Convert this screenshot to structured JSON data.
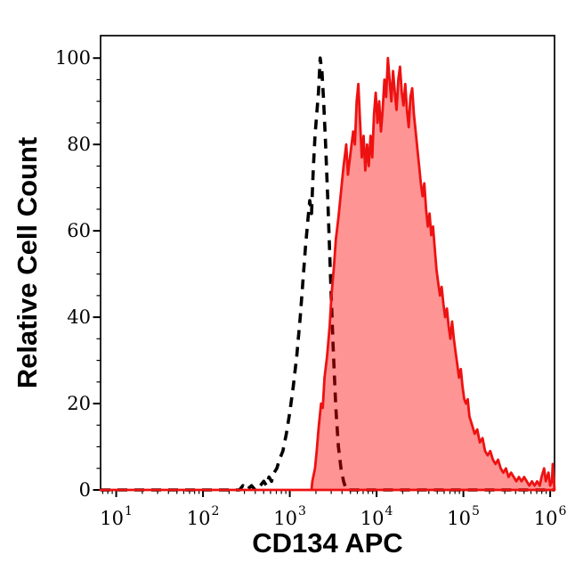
{
  "figure": {
    "background": "#ffffff",
    "frame_color": "#000000"
  },
  "chart_data": {
    "type": "area",
    "subtype": "flow-cytometry-overlay-histogram",
    "title": "",
    "xlabel": "CD134 APC",
    "ylabel": "Relative Cell Count",
    "x_scale": "log10",
    "x_tick_base": "10",
    "x_tick_exponents": [
      1,
      2,
      3,
      4,
      5,
      6
    ],
    "x_range_log10": [
      0.82,
      6.05
    ],
    "y_ticks": [
      0,
      20,
      40,
      60,
      80,
      100
    ],
    "y_minor_step": 5,
    "y_range": [
      0,
      105.2
    ],
    "grid": false,
    "legend": "none",
    "series": [
      {
        "name": "control (dashed outline)",
        "type": "dashed-histogram",
        "line_color": "#000000",
        "fill_color": "none",
        "peak_log10x": 3.35,
        "peak_count": 100,
        "points": [
          [
            0.82,
            0
          ],
          [
            2.42,
            0
          ],
          [
            2.46,
            1
          ],
          [
            2.5,
            0
          ],
          [
            2.56,
            1
          ],
          [
            2.6,
            0
          ],
          [
            2.66,
            1
          ],
          [
            2.7,
            2
          ],
          [
            2.73,
            1
          ],
          [
            2.76,
            3
          ],
          [
            2.79,
            2
          ],
          [
            2.82,
            4
          ],
          [
            2.85,
            5
          ],
          [
            2.88,
            7
          ],
          [
            2.92,
            9
          ],
          [
            2.96,
            13
          ],
          [
            3.0,
            18
          ],
          [
            3.04,
            24
          ],
          [
            3.08,
            31
          ],
          [
            3.12,
            40
          ],
          [
            3.15,
            48
          ],
          [
            3.18,
            56
          ],
          [
            3.21,
            63
          ],
          [
            3.23,
            67
          ],
          [
            3.25,
            64
          ],
          [
            3.27,
            74
          ],
          [
            3.29,
            82
          ],
          [
            3.31,
            87
          ],
          [
            3.33,
            92
          ],
          [
            3.35,
            100
          ],
          [
            3.37,
            97
          ],
          [
            3.39,
            90
          ],
          [
            3.41,
            81
          ],
          [
            3.44,
            66
          ],
          [
            3.47,
            49
          ],
          [
            3.5,
            33
          ],
          [
            3.53,
            19
          ],
          [
            3.56,
            10
          ],
          [
            3.59,
            5
          ],
          [
            3.62,
            2
          ],
          [
            3.65,
            0
          ],
          [
            6.05,
            0
          ]
        ]
      },
      {
        "name": "CD134 APC stained (red filled)",
        "type": "filled-histogram",
        "line_color": "#ee1111",
        "fill_color": "rgba(255,0,0,0.42)",
        "peak_log10x": 4.13,
        "peak_count": 100,
        "points": [
          [
            0.82,
            0
          ],
          [
            3.25,
            0
          ],
          [
            3.26,
            2
          ],
          [
            3.29,
            5
          ],
          [
            3.31,
            9
          ],
          [
            3.33,
            14
          ],
          [
            3.36,
            20
          ],
          [
            3.38,
            19
          ],
          [
            3.4,
            26
          ],
          [
            3.43,
            31
          ],
          [
            3.46,
            38
          ],
          [
            3.48,
            45
          ],
          [
            3.51,
            52
          ],
          [
            3.53,
            58
          ],
          [
            3.56,
            63
          ],
          [
            3.59,
            69
          ],
          [
            3.62,
            75
          ],
          [
            3.65,
            80
          ],
          [
            3.67,
            73
          ],
          [
            3.7,
            78
          ],
          [
            3.73,
            83
          ],
          [
            3.75,
            80
          ],
          [
            3.77,
            90
          ],
          [
            3.79,
            94
          ],
          [
            3.81,
            85
          ],
          [
            3.83,
            77
          ],
          [
            3.85,
            82
          ],
          [
            3.87,
            74
          ],
          [
            3.89,
            80
          ],
          [
            3.91,
            75
          ],
          [
            3.93,
            82
          ],
          [
            3.95,
            77
          ],
          [
            3.97,
            87
          ],
          [
            3.99,
            92
          ],
          [
            4.01,
            85
          ],
          [
            4.03,
            90
          ],
          [
            4.05,
            83
          ],
          [
            4.07,
            88
          ],
          [
            4.09,
            95
          ],
          [
            4.11,
            91
          ],
          [
            4.13,
            100
          ],
          [
            4.15,
            95
          ],
          [
            4.17,
            90
          ],
          [
            4.19,
            97
          ],
          [
            4.21,
            92
          ],
          [
            4.23,
            88
          ],
          [
            4.25,
            95
          ],
          [
            4.27,
            98
          ],
          [
            4.29,
            92
          ],
          [
            4.31,
            89
          ],
          [
            4.33,
            94
          ],
          [
            4.35,
            88
          ],
          [
            4.37,
            84
          ],
          [
            4.39,
            91
          ],
          [
            4.41,
            93
          ],
          [
            4.43,
            87
          ],
          [
            4.45,
            83
          ],
          [
            4.47,
            79
          ],
          [
            4.49,
            75
          ],
          [
            4.51,
            71
          ],
          [
            4.53,
            68
          ],
          [
            4.55,
            71
          ],
          [
            4.57,
            65
          ],
          [
            4.59,
            61
          ],
          [
            4.61,
            64
          ],
          [
            4.63,
            59
          ],
          [
            4.65,
            61
          ],
          [
            4.67,
            56
          ],
          [
            4.69,
            51
          ],
          [
            4.71,
            48
          ],
          [
            4.73,
            45
          ],
          [
            4.75,
            47
          ],
          [
            4.77,
            43
          ],
          [
            4.79,
            40
          ],
          [
            4.81,
            42
          ],
          [
            4.83,
            38
          ],
          [
            4.85,
            35
          ],
          [
            4.87,
            39
          ],
          [
            4.89,
            35
          ],
          [
            4.91,
            32
          ],
          [
            4.93,
            29
          ],
          [
            4.95,
            26
          ],
          [
            4.97,
            28
          ],
          [
            4.99,
            24
          ],
          [
            5.01,
            21
          ],
          [
            5.03,
            20
          ],
          [
            5.05,
            21
          ],
          [
            5.07,
            17
          ],
          [
            5.1,
            15
          ],
          [
            5.13,
            13
          ],
          [
            5.16,
            14
          ],
          [
            5.19,
            11
          ],
          [
            5.22,
            12
          ],
          [
            5.25,
            9
          ],
          [
            5.28,
            8
          ],
          [
            5.31,
            9
          ],
          [
            5.34,
            7
          ],
          [
            5.37,
            6
          ],
          [
            5.4,
            7
          ],
          [
            5.43,
            5
          ],
          [
            5.46,
            4
          ],
          [
            5.49,
            5
          ],
          [
            5.52,
            3
          ],
          [
            5.55,
            4
          ],
          [
            5.58,
            3
          ],
          [
            5.61,
            2
          ],
          [
            5.64,
            3
          ],
          [
            5.67,
            2
          ],
          [
            5.7,
            3
          ],
          [
            5.73,
            2
          ],
          [
            5.76,
            1
          ],
          [
            5.79,
            2
          ],
          [
            5.82,
            1
          ],
          [
            5.85,
            2
          ],
          [
            5.88,
            1
          ],
          [
            5.9,
            3
          ],
          [
            5.93,
            5
          ],
          [
            5.95,
            2
          ],
          [
            5.98,
            4
          ],
          [
            6.0,
            1
          ],
          [
            6.02,
            2
          ],
          [
            6.03,
            6
          ],
          [
            6.05,
            0
          ]
        ]
      }
    ]
  }
}
